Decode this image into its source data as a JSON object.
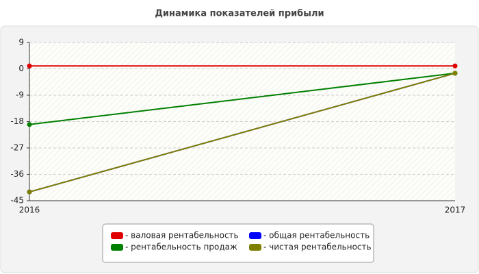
{
  "chart_data": {
    "type": "line",
    "title": "Динамика показателей прибыли",
    "categories": [
      "2016",
      "2017"
    ],
    "series": [
      {
        "name": "- валовая рентабельность",
        "color": "#e00000",
        "values": [
          1,
          1
        ]
      },
      {
        "name": "- общая рентабельность",
        "color": "#0000ff",
        "values": [
          -42,
          -1.5
        ]
      },
      {
        "name": "- рентабельность продаж",
        "color": "#008000",
        "values": [
          -19,
          -1.5
        ]
      },
      {
        "name": "- чистая рентабельность",
        "color": "#808000",
        "values": [
          -42,
          -1.5
        ]
      }
    ],
    "ylim": [
      -45,
      9
    ],
    "yticks": [
      9,
      0,
      -9,
      -18,
      -27,
      -36,
      -45
    ],
    "grid": true
  }
}
